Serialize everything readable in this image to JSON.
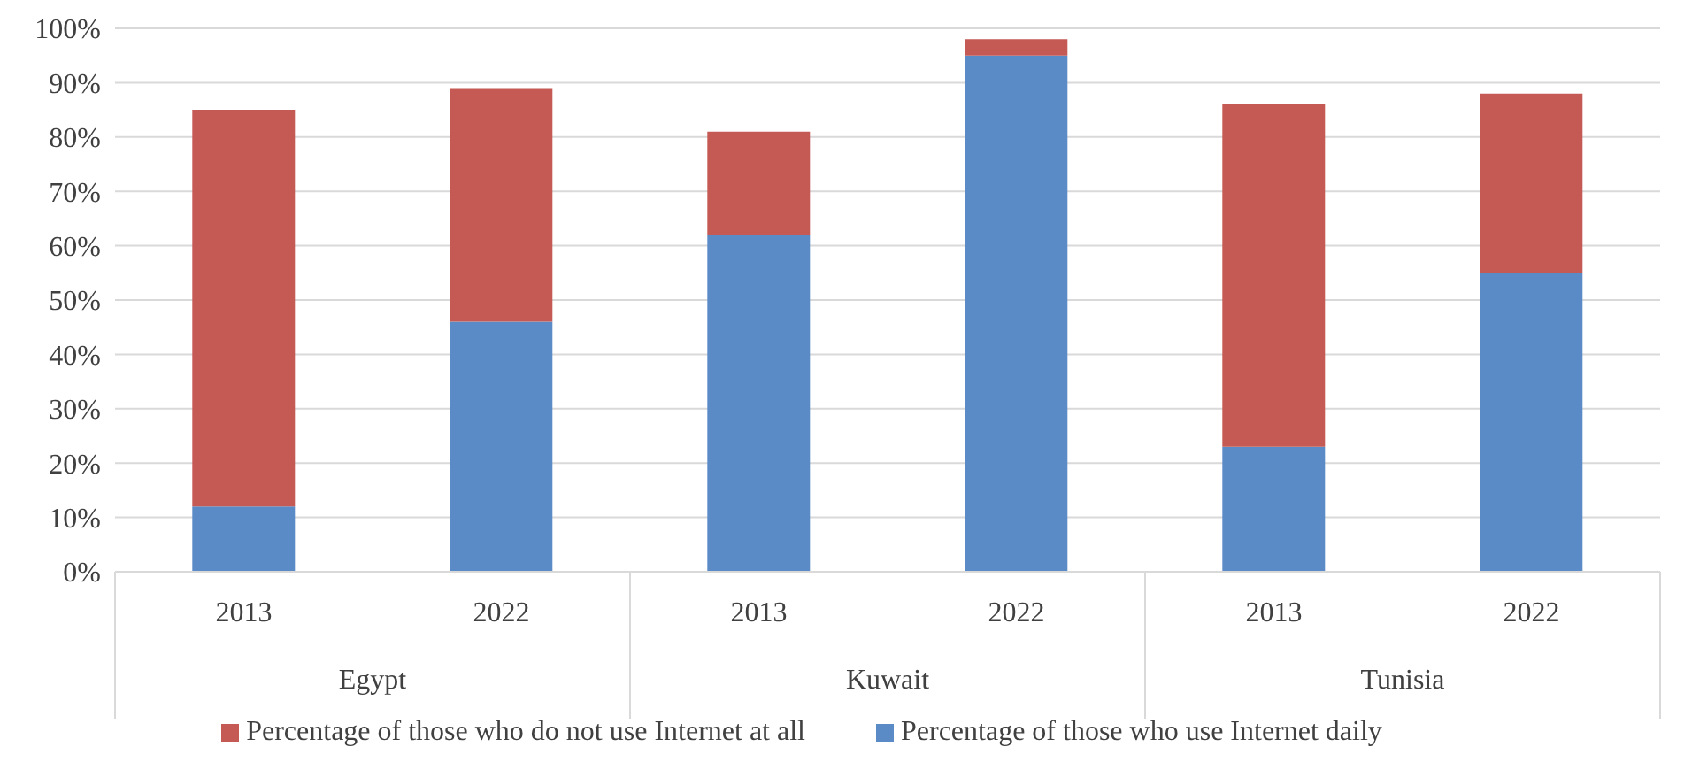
{
  "chart_data": {
    "type": "bar",
    "stacked": true,
    "categories": [
      "2013",
      "2022",
      "2013",
      "2022",
      "2013",
      "2022"
    ],
    "annotations": [
      "Egypt",
      "Kuwait",
      "Tunisia"
    ],
    "series": [
      {
        "name": "Percentage of those who use Internet daily",
        "color": "#5b8bc6",
        "values": [
          12,
          46,
          62,
          95,
          23,
          55
        ]
      },
      {
        "name": "Percentage of those who do not use Internet at all",
        "color": "#c55a55",
        "values": [
          73,
          43,
          19,
          3,
          63,
          33
        ]
      }
    ],
    "ylim": [
      0,
      100
    ],
    "yticks": [
      {
        "value": 0,
        "label": "0%"
      },
      {
        "value": 10,
        "label": "10%"
      },
      {
        "value": 20,
        "label": "20%"
      },
      {
        "value": 30,
        "label": "30%"
      },
      {
        "value": 40,
        "label": "40%"
      },
      {
        "value": 50,
        "label": "50%"
      },
      {
        "value": 60,
        "label": "60%"
      },
      {
        "value": 70,
        "label": "70%"
      },
      {
        "value": 80,
        "label": "80%"
      },
      {
        "value": 90,
        "label": "90%"
      },
      {
        "value": 100,
        "label": "100%"
      }
    ],
    "grid": "y",
    "legend": "bottom"
  }
}
